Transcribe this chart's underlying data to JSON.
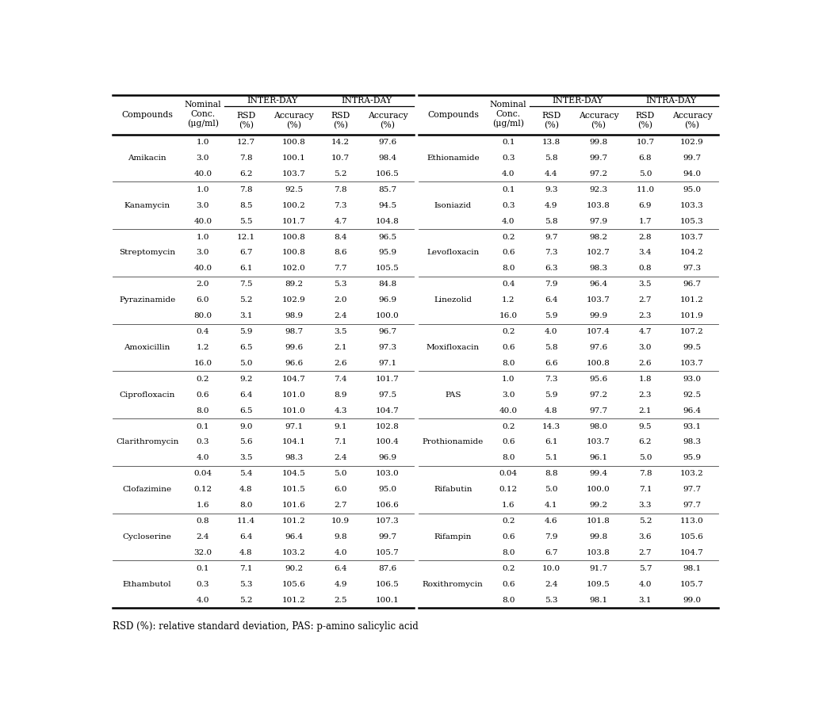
{
  "left_compounds": [
    {
      "name": "Amikacin",
      "rows": [
        [
          "1.0",
          "12.7",
          "100.8",
          "14.2",
          "97.6"
        ],
        [
          "3.0",
          "7.8",
          "100.1",
          "10.7",
          "98.4"
        ],
        [
          "40.0",
          "6.2",
          "103.7",
          "5.2",
          "106.5"
        ]
      ]
    },
    {
      "name": "Kanamycin",
      "rows": [
        [
          "1.0",
          "7.8",
          "92.5",
          "7.8",
          "85.7"
        ],
        [
          "3.0",
          "8.5",
          "100.2",
          "7.3",
          "94.5"
        ],
        [
          "40.0",
          "5.5",
          "101.7",
          "4.7",
          "104.8"
        ]
      ]
    },
    {
      "name": "Streptomycin",
      "rows": [
        [
          "1.0",
          "12.1",
          "100.8",
          "8.4",
          "96.5"
        ],
        [
          "3.0",
          "6.7",
          "100.8",
          "8.6",
          "95.9"
        ],
        [
          "40.0",
          "6.1",
          "102.0",
          "7.7",
          "105.5"
        ]
      ]
    },
    {
      "name": "Pyrazinamide",
      "rows": [
        [
          "2.0",
          "7.5",
          "89.2",
          "5.3",
          "84.8"
        ],
        [
          "6.0",
          "5.2",
          "102.9",
          "2.0",
          "96.9"
        ],
        [
          "80.0",
          "3.1",
          "98.9",
          "2.4",
          "100.0"
        ]
      ]
    },
    {
      "name": "Amoxicillin",
      "rows": [
        [
          "0.4",
          "5.9",
          "98.7",
          "3.5",
          "96.7"
        ],
        [
          "1.2",
          "6.5",
          "99.6",
          "2.1",
          "97.3"
        ],
        [
          "16.0",
          "5.0",
          "96.6",
          "2.6",
          "97.1"
        ]
      ]
    },
    {
      "name": "Ciprofloxacin",
      "rows": [
        [
          "0.2",
          "9.2",
          "104.7",
          "7.4",
          "101.7"
        ],
        [
          "0.6",
          "6.4",
          "101.0",
          "8.9",
          "97.5"
        ],
        [
          "8.0",
          "6.5",
          "101.0",
          "4.3",
          "104.7"
        ]
      ]
    },
    {
      "name": "Clarithromycin",
      "rows": [
        [
          "0.1",
          "9.0",
          "97.1",
          "9.1",
          "102.8"
        ],
        [
          "0.3",
          "5.6",
          "104.1",
          "7.1",
          "100.4"
        ],
        [
          "4.0",
          "3.5",
          "98.3",
          "2.4",
          "96.9"
        ]
      ]
    },
    {
      "name": "Clofazimine",
      "rows": [
        [
          "0.04",
          "5.4",
          "104.5",
          "5.0",
          "103.0"
        ],
        [
          "0.12",
          "4.8",
          "101.5",
          "6.0",
          "95.0"
        ],
        [
          "1.6",
          "8.0",
          "101.6",
          "2.7",
          "106.6"
        ]
      ]
    },
    {
      "name": "Cycloserine",
      "rows": [
        [
          "0.8",
          "11.4",
          "101.2",
          "10.9",
          "107.3"
        ],
        [
          "2.4",
          "6.4",
          "96.4",
          "9.8",
          "99.7"
        ],
        [
          "32.0",
          "4.8",
          "103.2",
          "4.0",
          "105.7"
        ]
      ]
    },
    {
      "name": "Ethambutol",
      "rows": [
        [
          "0.1",
          "7.1",
          "90.2",
          "6.4",
          "87.6"
        ],
        [
          "0.3",
          "5.3",
          "105.6",
          "4.9",
          "106.5"
        ],
        [
          "4.0",
          "5.2",
          "101.2",
          "2.5",
          "100.1"
        ]
      ]
    }
  ],
  "right_compounds": [
    {
      "name": "Ethionamide",
      "rows": [
        [
          "0.1",
          "13.8",
          "99.8",
          "10.7",
          "102.9"
        ],
        [
          "0.3",
          "5.8",
          "99.7",
          "6.8",
          "99.7"
        ],
        [
          "4.0",
          "4.4",
          "97.2",
          "5.0",
          "94.0"
        ]
      ]
    },
    {
      "name": "Isoniazid",
      "rows": [
        [
          "0.1",
          "9.3",
          "92.3",
          "11.0",
          "95.0"
        ],
        [
          "0.3",
          "4.9",
          "103.8",
          "6.9",
          "103.3"
        ],
        [
          "4.0",
          "5.8",
          "97.9",
          "1.7",
          "105.3"
        ]
      ]
    },
    {
      "name": "Levofloxacin",
      "rows": [
        [
          "0.2",
          "9.7",
          "98.2",
          "2.8",
          "103.7"
        ],
        [
          "0.6",
          "7.3",
          "102.7",
          "3.4",
          "104.2"
        ],
        [
          "8.0",
          "6.3",
          "98.3",
          "0.8",
          "97.3"
        ]
      ]
    },
    {
      "name": "Linezolid",
      "rows": [
        [
          "0.4",
          "7.9",
          "96.4",
          "3.5",
          "96.7"
        ],
        [
          "1.2",
          "6.4",
          "103.7",
          "2.7",
          "101.2"
        ],
        [
          "16.0",
          "5.9",
          "99.9",
          "2.3",
          "101.9"
        ]
      ]
    },
    {
      "name": "Moxifloxacin",
      "rows": [
        [
          "0.2",
          "4.0",
          "107.4",
          "4.7",
          "107.2"
        ],
        [
          "0.6",
          "5.8",
          "97.6",
          "3.0",
          "99.5"
        ],
        [
          "8.0",
          "6.6",
          "100.8",
          "2.6",
          "103.7"
        ]
      ]
    },
    {
      "name": "PAS",
      "rows": [
        [
          "1.0",
          "7.3",
          "95.6",
          "1.8",
          "93.0"
        ],
        [
          "3.0",
          "5.9",
          "97.2",
          "2.3",
          "92.5"
        ],
        [
          "40.0",
          "4.8",
          "97.7",
          "2.1",
          "96.4"
        ]
      ]
    },
    {
      "name": "Prothionamide",
      "rows": [
        [
          "0.2",
          "14.3",
          "98.0",
          "9.5",
          "93.1"
        ],
        [
          "0.6",
          "6.1",
          "103.7",
          "6.2",
          "98.3"
        ],
        [
          "8.0",
          "5.1",
          "96.1",
          "5.0",
          "95.9"
        ]
      ]
    },
    {
      "name": "Rifabutin",
      "rows": [
        [
          "0.04",
          "8.8",
          "99.4",
          "7.8",
          "103.2"
        ],
        [
          "0.12",
          "5.0",
          "100.0",
          "7.1",
          "97.7"
        ],
        [
          "1.6",
          "4.1",
          "99.2",
          "3.3",
          "97.7"
        ]
      ]
    },
    {
      "name": "Rifampin",
      "rows": [
        [
          "0.2",
          "4.6",
          "101.8",
          "5.2",
          "113.0"
        ],
        [
          "0.6",
          "7.9",
          "99.8",
          "3.6",
          "105.6"
        ],
        [
          "8.0",
          "6.7",
          "103.8",
          "2.7",
          "104.7"
        ]
      ]
    },
    {
      "name": "Roxithromycin",
      "rows": [
        [
          "0.2",
          "10.0",
          "91.7",
          "5.7",
          "98.1"
        ],
        [
          "0.6",
          "2.4",
          "109.5",
          "4.0",
          "105.7"
        ],
        [
          "8.0",
          "5.3",
          "98.1",
          "3.1",
          "99.0"
        ]
      ]
    }
  ],
  "footnote": "RSD (%): relative standard deviation, PAS: p-amino salicylic acid",
  "bg_color": "#ffffff"
}
